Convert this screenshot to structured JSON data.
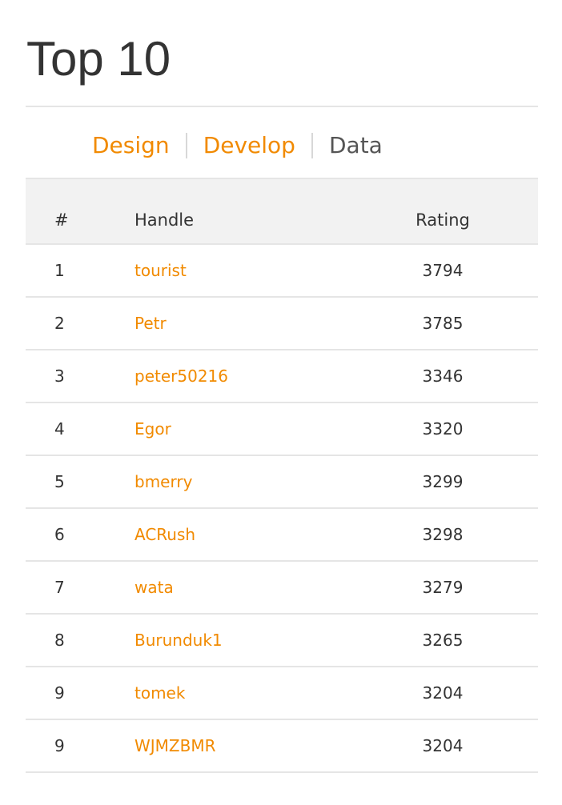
{
  "header": {
    "title": "Top 10"
  },
  "tabs": [
    {
      "label": "Design",
      "active": true
    },
    {
      "label": "Develop",
      "active": true
    },
    {
      "label": "Data",
      "active": false
    }
  ],
  "table": {
    "headers": {
      "rank": "#",
      "handle": "Handle",
      "rating": "Rating"
    },
    "rows": [
      {
        "rank": "1",
        "handle": "tourist",
        "rating": "3794"
      },
      {
        "rank": "2",
        "handle": "Petr",
        "rating": "3785"
      },
      {
        "rank": "3",
        "handle": "peter50216",
        "rating": "3346"
      },
      {
        "rank": "4",
        "handle": "Egor",
        "rating": "3320"
      },
      {
        "rank": "5",
        "handle": "bmerry",
        "rating": "3299"
      },
      {
        "rank": "6",
        "handle": "ACRush",
        "rating": "3298"
      },
      {
        "rank": "7",
        "handle": "wata",
        "rating": "3279"
      },
      {
        "rank": "8",
        "handle": "Burunduk1",
        "rating": "3265"
      },
      {
        "rank": "9",
        "handle": "tomek",
        "rating": "3204"
      },
      {
        "rank": "9",
        "handle": "WJMZBMR",
        "rating": "3204"
      }
    ]
  },
  "colors": {
    "accent": "#f18a00",
    "text": "#333333",
    "header_bg": "#f2f2f2",
    "rule": "#e5e5e5"
  }
}
